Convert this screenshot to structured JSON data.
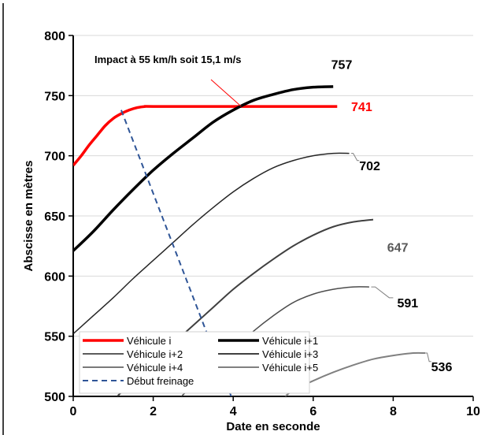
{
  "chart_data": {
    "type": "line",
    "title": "",
    "xlabel": "Date en seconde",
    "ylabel": "Abscisse en mètres",
    "xlim": [
      0,
      10
    ],
    "ylim": [
      500,
      800
    ],
    "xticks": [
      0,
      2,
      4,
      6,
      8,
      10
    ],
    "yticks": [
      500,
      550,
      600,
      650,
      700,
      750,
      800
    ],
    "grid": "horizontal",
    "legend_position": "bottom-left",
    "annotation": "Impact à 55 km/h soit 15,1 m/s",
    "colors": {
      "vehicule_i": "#ff0000",
      "vehicule_i1": "#000000",
      "vehicule_i2": "#262626",
      "vehicule_i3": "#404040",
      "vehicule_i4": "#4d4d4d",
      "vehicule_i5": "#808080",
      "debut_freinage": "#2f5597",
      "label_647": "#595959"
    },
    "series": [
      {
        "name": "Véhicule i",
        "color": "#ff0000",
        "end_label": "741",
        "points": [
          [
            0,
            692
          ],
          [
            0.2,
            700
          ],
          [
            0.4,
            709
          ],
          [
            0.6,
            717
          ],
          [
            0.8,
            725
          ],
          [
            1.0,
            731
          ],
          [
            1.2,
            735
          ],
          [
            1.4,
            738
          ],
          [
            1.6,
            740
          ],
          [
            1.8,
            741
          ],
          [
            2.0,
            741
          ],
          [
            4.0,
            741
          ],
          [
            6.6,
            741
          ]
        ]
      },
      {
        "name": "Véhicule i+1",
        "color": "#000000",
        "end_label": "757",
        "points": [
          [
            0,
            621
          ],
          [
            0.5,
            637
          ],
          [
            1.0,
            655
          ],
          [
            1.5,
            672
          ],
          [
            2.0,
            688
          ],
          [
            2.5,
            702
          ],
          [
            3.0,
            715
          ],
          [
            3.5,
            728
          ],
          [
            4.0,
            738
          ],
          [
            4.5,
            746
          ],
          [
            5.0,
            751
          ],
          [
            5.5,
            755
          ],
          [
            6.0,
            757
          ],
          [
            6.5,
            757.5
          ]
        ]
      },
      {
        "name": "Véhicule i+2",
        "color": "#262626",
        "end_label": "702",
        "points": [
          [
            0,
            552
          ],
          [
            0.5,
            567
          ],
          [
            1.0,
            582
          ],
          [
            1.5,
            598
          ],
          [
            2.0,
            613
          ],
          [
            2.5,
            628
          ],
          [
            3.0,
            643
          ],
          [
            3.5,
            657
          ],
          [
            4.0,
            670
          ],
          [
            4.5,
            681
          ],
          [
            5.0,
            690
          ],
          [
            5.5,
            696
          ],
          [
            6.0,
            700
          ],
          [
            6.5,
            702
          ],
          [
            6.9,
            702
          ]
        ]
      },
      {
        "name": "Véhicule i+3",
        "color": "#404040",
        "end_label": "647",
        "points": [
          [
            1.1,
            500
          ],
          [
            1.5,
            513
          ],
          [
            2.0,
            528
          ],
          [
            2.5,
            544
          ],
          [
            3.0,
            559
          ],
          [
            3.5,
            574
          ],
          [
            4.0,
            589
          ],
          [
            4.5,
            602
          ],
          [
            5.0,
            614
          ],
          [
            5.5,
            625
          ],
          [
            6.0,
            634
          ],
          [
            6.5,
            641
          ],
          [
            7.0,
            645
          ],
          [
            7.5,
            647
          ]
        ]
      },
      {
        "name": "Véhicule i+4",
        "color": "#4d4d4d",
        "end_label": "591",
        "points": [
          [
            2.7,
            500
          ],
          [
            3.0,
            509
          ],
          [
            3.5,
            524
          ],
          [
            4.0,
            539
          ],
          [
            4.5,
            554
          ],
          [
            5.0,
            567
          ],
          [
            5.5,
            578
          ],
          [
            6.0,
            585
          ],
          [
            6.5,
            589
          ],
          [
            7.0,
            591
          ],
          [
            7.4,
            591
          ]
        ]
      },
      {
        "name": "Véhicule i+5",
        "color": "#808080",
        "end_label": "536",
        "points": [
          [
            5.3,
            500
          ],
          [
            5.5,
            505
          ],
          [
            6.0,
            513
          ],
          [
            6.5,
            520
          ],
          [
            7.0,
            526
          ],
          [
            7.5,
            531
          ],
          [
            8.0,
            534
          ],
          [
            8.5,
            536
          ],
          [
            8.8,
            536
          ]
        ]
      },
      {
        "name": "Début freinage",
        "color": "#2f5597",
        "dashed": true,
        "points": [
          [
            1.2,
            738
          ],
          [
            3.95,
            500
          ]
        ]
      }
    ]
  }
}
